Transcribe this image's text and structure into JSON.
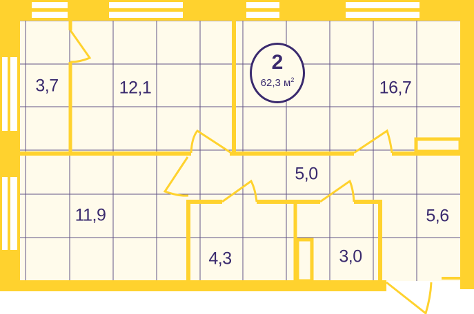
{
  "apartment": {
    "number": "2",
    "area_value": "62,3",
    "area_unit": "м",
    "area_exp": "2"
  },
  "rooms": [
    {
      "id": "storage",
      "area": "3,7"
    },
    {
      "id": "bedroom-1",
      "area": "12,1"
    },
    {
      "id": "living",
      "area": "16,7"
    },
    {
      "id": "hall",
      "area": "5,0"
    },
    {
      "id": "bedroom-2",
      "area": "11,9"
    },
    {
      "id": "entry",
      "area": "5,6"
    },
    {
      "id": "bathroom",
      "area": "4,3"
    },
    {
      "id": "wc",
      "area": "3,0"
    }
  ],
  "colors": {
    "wall": "#ffd22e",
    "floor": "#fffbeb",
    "grid": "#3a2a6e",
    "text": "#3a2a6e"
  }
}
